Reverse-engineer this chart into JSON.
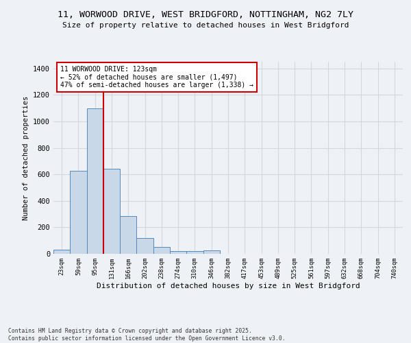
{
  "title_line1": "11, WORWOOD DRIVE, WEST BRIDGFORD, NOTTINGHAM, NG2 7LY",
  "title_line2": "Size of property relative to detached houses in West Bridgford",
  "xlabel": "Distribution of detached houses by size in West Bridgford",
  "ylabel": "Number of detached properties",
  "categories": [
    "23sqm",
    "59sqm",
    "95sqm",
    "131sqm",
    "166sqm",
    "202sqm",
    "238sqm",
    "274sqm",
    "310sqm",
    "346sqm",
    "382sqm",
    "417sqm",
    "453sqm",
    "489sqm",
    "525sqm",
    "561sqm",
    "597sqm",
    "632sqm",
    "668sqm",
    "704sqm",
    "740sqm"
  ],
  "values": [
    30,
    625,
    1100,
    640,
    285,
    120,
    50,
    20,
    20,
    25,
    0,
    0,
    0,
    0,
    0,
    0,
    0,
    0,
    0,
    0,
    0
  ],
  "bar_color": "#c8d8e8",
  "bar_edge_color": "#5588bb",
  "grid_color": "#d0d8e0",
  "annotation_line1": "11 WORWOOD DRIVE: 123sqm",
  "annotation_line2": "← 52% of detached houses are smaller (1,497)",
  "annotation_line3": "47% of semi-detached houses are larger (1,338) →",
  "annotation_box_color": "#ffffff",
  "annotation_box_edge": "#cc0000",
  "vline_color": "#cc0000",
  "vline_x": 2.5,
  "ylim": [
    0,
    1450
  ],
  "yticks": [
    0,
    200,
    400,
    600,
    800,
    1000,
    1200,
    1400
  ],
  "footer_line1": "Contains HM Land Registry data © Crown copyright and database right 2025.",
  "footer_line2": "Contains public sector information licensed under the Open Government Licence v3.0.",
  "bg_color": "#eef2f7",
  "plot_bg_color": "#eef2f7"
}
